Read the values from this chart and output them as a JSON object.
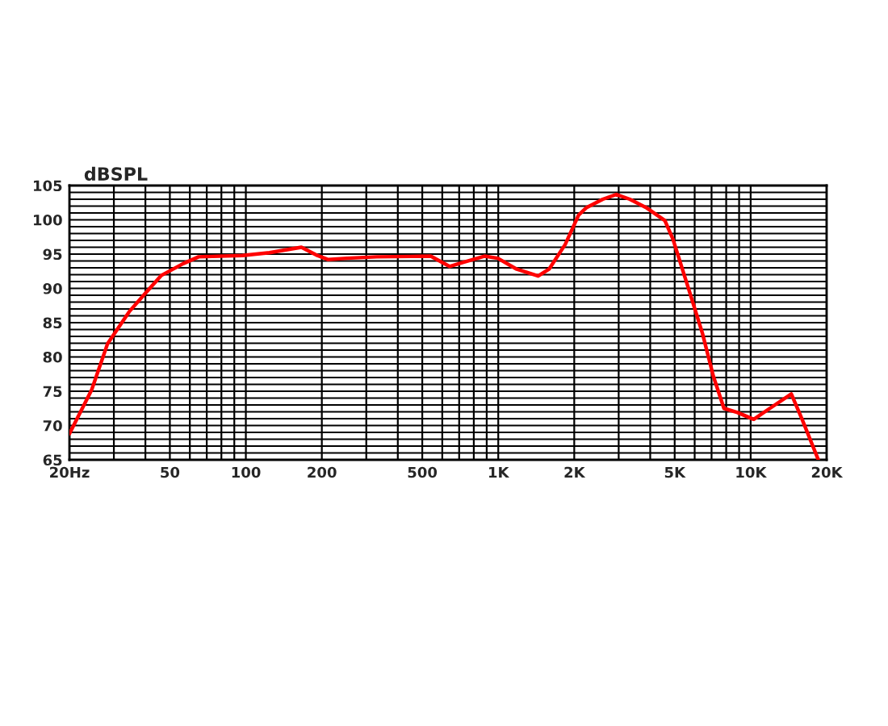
{
  "chart_data": {
    "type": "line",
    "ylabel": "dBSPL",
    "log": "x",
    "grid": true,
    "line_style": "solid",
    "x": [
      20,
      24.5,
      28.3,
      34.5,
      40,
      46.3,
      56.4,
      65,
      97,
      124,
      166,
      192,
      212,
      252,
      330,
      540,
      641,
      728,
      881,
      995,
      1184,
      1439,
      1589,
      1841,
      2081,
      2240,
      2595,
      2937,
      3320,
      3847,
      4571,
      4920,
      5704,
      6446,
      7113,
      7837,
      8871,
      10280,
      11910,
      14490,
      15990,
      18540
    ],
    "series": [
      {
        "color": "#ff0000",
        "values": [
          68.8,
          75.2,
          81.9,
          86.6,
          89.3,
          91.9,
          93.6,
          94.6,
          94.8,
          95.2,
          96.0,
          94.8,
          94.2,
          94.4,
          94.6,
          94.7,
          93.2,
          93.8,
          94.7,
          94.4,
          92.8,
          91.8,
          92.8,
          96.4,
          100.7,
          101.8,
          103.0,
          103.7,
          103.0,
          101.8,
          99.9,
          97.2,
          89.7,
          83.4,
          77.2,
          72.5,
          71.9,
          70.9,
          72.5,
          74.6,
          70.9,
          65.0
        ]
      }
    ],
    "xlim": [
      20,
      20000
    ],
    "ylim": [
      65,
      105
    ],
    "xticks": [
      {
        "value": 20,
        "label": "20Hz"
      },
      {
        "value": 30,
        "label": null
      },
      {
        "value": 40,
        "label": null
      },
      50,
      {
        "value": 60,
        "label": null
      },
      {
        "value": 70,
        "label": null
      },
      {
        "value": 80,
        "label": null
      },
      {
        "value": 90,
        "label": null
      },
      100,
      200,
      {
        "value": 300,
        "label": null
      },
      {
        "value": 400,
        "label": null
      },
      500,
      {
        "value": 600,
        "label": null
      },
      {
        "value": 700,
        "label": null
      },
      {
        "value": 800,
        "label": null
      },
      {
        "value": 900,
        "label": null
      },
      {
        "value": 1000,
        "label": "1K"
      },
      {
        "value": 2000,
        "label": "2K"
      },
      {
        "value": 3000,
        "label": null
      },
      {
        "value": 4000,
        "label": null
      },
      {
        "value": 5000,
        "label": "5K"
      },
      {
        "value": 6000,
        "label": null
      },
      {
        "value": 7000,
        "label": null
      },
      {
        "value": 8000,
        "label": null
      },
      {
        "value": 9000,
        "label": null
      },
      {
        "value": 10000,
        "label": "10K"
      },
      {
        "value": 20000,
        "label": "20K"
      }
    ],
    "yticks": [
      65,
      {
        "value": 66,
        "label": null
      },
      {
        "value": 67,
        "label": null
      },
      {
        "value": 68,
        "label": null
      },
      {
        "value": 69,
        "label": null
      },
      70,
      {
        "value": 71,
        "label": null
      },
      {
        "value": 72,
        "label": null
      },
      {
        "value": 73,
        "label": null
      },
      {
        "value": 74,
        "label": null
      },
      75,
      {
        "value": 76,
        "label": null
      },
      {
        "value": 77,
        "label": null
      },
      {
        "value": 78,
        "label": null
      },
      {
        "value": 79,
        "label": null
      },
      80,
      {
        "value": 81,
        "label": null
      },
      {
        "value": 82,
        "label": null
      },
      {
        "value": 83,
        "label": null
      },
      {
        "value": 84,
        "label": null
      },
      85,
      {
        "value": 86,
        "label": null
      },
      {
        "value": 87,
        "label": null
      },
      {
        "value": 88,
        "label": null
      },
      {
        "value": 89,
        "label": null
      },
      90,
      {
        "value": 91,
        "label": null
      },
      {
        "value": 92,
        "label": null
      },
      {
        "value": 93,
        "label": null
      },
      {
        "value": 94,
        "label": null
      },
      95,
      {
        "value": 96,
        "label": null
      },
      {
        "value": 97,
        "label": null
      },
      {
        "value": 98,
        "label": null
      },
      {
        "value": 99,
        "label": null
      },
      100,
      {
        "value": 101,
        "label": null
      },
      {
        "value": 102,
        "label": null
      },
      {
        "value": 103,
        "label": null
      },
      {
        "value": 104,
        "label": null
      },
      105
    ]
  }
}
